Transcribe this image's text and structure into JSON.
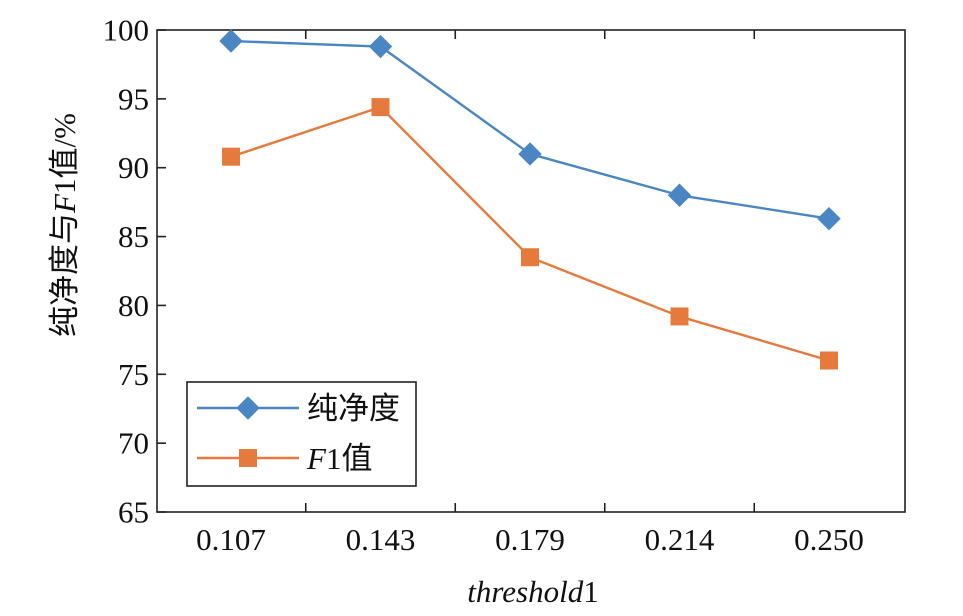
{
  "chart_data": {
    "type": "line",
    "categories": [
      "0.107",
      "0.143",
      "0.179",
      "0.214",
      "0.250"
    ],
    "xlabel": {
      "italic": "threshold",
      "normal": "1"
    },
    "ylabel": {
      "prefix": "纯净度与",
      "italic": "F",
      "suffix": "1值/%"
    },
    "ylim": [
      65,
      100
    ],
    "yticks": [
      65,
      70,
      75,
      80,
      85,
      90,
      95,
      100
    ],
    "series": [
      {
        "name": "纯净度",
        "legend_italic": "",
        "legend_text": "纯净度",
        "marker": "diamond",
        "color": "#4a86c4",
        "values": [
          99.2,
          98.8,
          91.0,
          88.0,
          86.3
        ]
      },
      {
        "name": "F1值",
        "legend_italic": "F",
        "legend_text": "1值",
        "marker": "square",
        "color": "#e6793c",
        "values": [
          90.8,
          94.4,
          83.5,
          79.2,
          76.0
        ]
      }
    ],
    "legend": "lower-left",
    "grid": false
  }
}
